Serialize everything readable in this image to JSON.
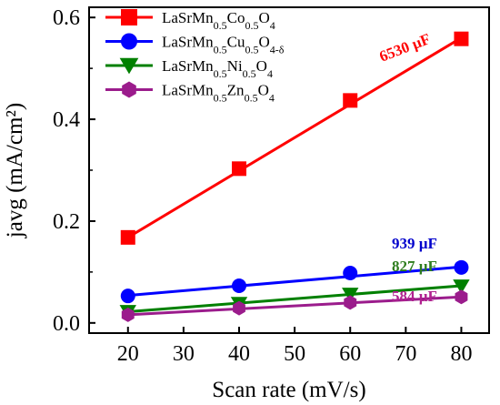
{
  "chart_data": {
    "type": "line",
    "xlabel": "Scan rate (mV/s)",
    "ylabel": "javg (mA/cm²)",
    "xlim": [
      13,
      85
    ],
    "ylim": [
      -0.02,
      0.62
    ],
    "xticks": [
      20,
      30,
      40,
      50,
      60,
      70,
      80
    ],
    "yticks": [
      0.0,
      0.2,
      0.4,
      0.6
    ],
    "xtick_labels": [
      "20",
      "30",
      "40",
      "50",
      "60",
      "70",
      "80"
    ],
    "ytick_labels": [
      "0.0",
      "0.2",
      "0.4",
      "0.6"
    ],
    "legend_position": "top-left",
    "series": [
      {
        "name": "LaSrMn0.5Co0.5O4",
        "legend_parts": [
          [
            "LaSrMn",
            ""
          ],
          [
            "0.5",
            "sub"
          ],
          [
            "Co",
            ""
          ],
          [
            "0.5",
            "sub"
          ],
          [
            "O",
            ""
          ],
          [
            "4",
            "sub"
          ]
        ],
        "color": "#ff0000",
        "marker": "square",
        "x": [
          20,
          40,
          60,
          80
        ],
        "y": [
          0.168,
          0.303,
          0.437,
          0.558
        ],
        "fit": [
          [
            20,
            0.168
          ],
          [
            80,
            0.56
          ]
        ],
        "annotation": "6530 µF",
        "annotation_color": "#ff0000"
      },
      {
        "name": "LaSrMn0.5Cu0.5O4-δ",
        "legend_parts": [
          [
            "LaSrMn",
            ""
          ],
          [
            "0.5",
            "sub"
          ],
          [
            "Cu",
            ""
          ],
          [
            "0.5",
            "sub"
          ],
          [
            "O",
            ""
          ],
          [
            "4-δ",
            "sub"
          ]
        ],
        "color": "#0000ff",
        "marker": "circle",
        "x": [
          20,
          40,
          60,
          80
        ],
        "y": [
          0.053,
          0.073,
          0.098,
          0.109
        ],
        "fit": [
          [
            20,
            0.054
          ],
          [
            80,
            0.11
          ]
        ],
        "annotation": "939 µF",
        "annotation_color": "#0000cc"
      },
      {
        "name": "LaSrMn0.5Ni0.5O4",
        "legend_parts": [
          [
            "LaSrMn",
            ""
          ],
          [
            "0.5",
            "sub"
          ],
          [
            "Ni",
            ""
          ],
          [
            "0.5",
            "sub"
          ],
          [
            "O",
            ""
          ],
          [
            "4",
            "sub"
          ]
        ],
        "color": "#008000",
        "marker": "triangle-down",
        "x": [
          20,
          40,
          60,
          80
        ],
        "y": [
          0.022,
          0.038,
          0.056,
          0.072
        ],
        "fit": [
          [
            20,
            0.022
          ],
          [
            80,
            0.073
          ]
        ],
        "annotation": "827 µF",
        "annotation_color": "#2e7d1e"
      },
      {
        "name": "LaSrMn0.5Zn0.5O4",
        "legend_parts": [
          [
            "LaSrMn",
            ""
          ],
          [
            "0.5",
            "sub"
          ],
          [
            "Zn",
            ""
          ],
          [
            "0.5",
            "sub"
          ],
          [
            "O",
            ""
          ],
          [
            "4",
            "sub"
          ]
        ],
        "color": "#9b1c8c",
        "marker": "hexagon",
        "x": [
          20,
          40,
          60,
          80
        ],
        "y": [
          0.016,
          0.029,
          0.04,
          0.051
        ],
        "fit": [
          [
            20,
            0.016
          ],
          [
            80,
            0.051
          ]
        ],
        "annotation": "584 µF",
        "annotation_color": "#b0208f"
      }
    ]
  }
}
